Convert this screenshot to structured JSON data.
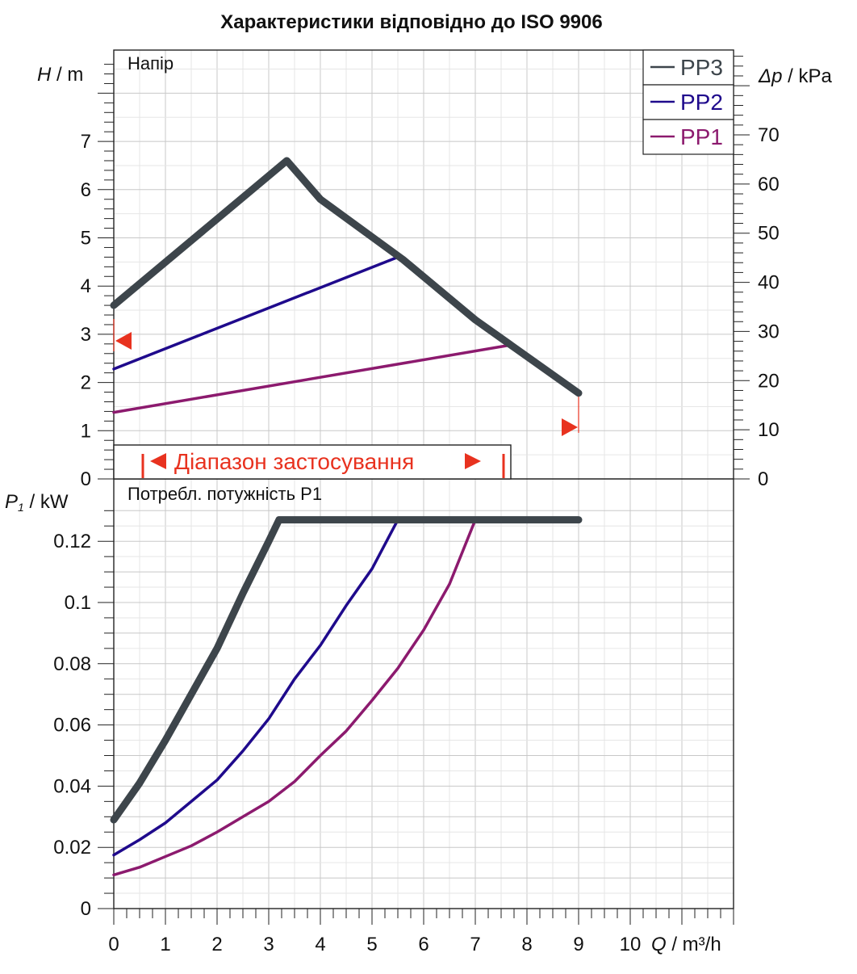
{
  "title": "Характеристики відповідно до ISO 9906",
  "chart_data": [
    {
      "type": "line",
      "panel": "head",
      "panel_label": "Напір",
      "ylabel_var": "H",
      "ylabel_unit": " / m",
      "y2label_var": "Δp",
      "y2label_unit": " / kPa",
      "xlim": [
        0,
        12
      ],
      "ylim": [
        0,
        8.6
      ],
      "y_ticks": [
        "0",
        "1",
        "2",
        "3",
        "4",
        "5",
        "6",
        "7"
      ],
      "y2_ticks": [
        "0",
        "10",
        "20",
        "30",
        "40",
        "50",
        "60",
        "70"
      ],
      "grid": true,
      "legend_position": "top-right",
      "series": [
        {
          "name": "PP3",
          "color": "#3d454b",
          "width": 9,
          "x": [
            0,
            3.35,
            4.0,
            5.6,
            7.0,
            9.0
          ],
          "y": [
            3.6,
            6.6,
            5.8,
            4.55,
            3.3,
            1.78
          ]
        },
        {
          "name": "PP2",
          "color": "#1f0a8c",
          "width": 3.5,
          "x": [
            0,
            5.5
          ],
          "y": [
            2.28,
            4.6
          ]
        },
        {
          "name": "PP1",
          "color": "#8c1a6e",
          "width": 3.5,
          "x": [
            0,
            7.7
          ],
          "y": [
            1.38,
            2.78
          ]
        }
      ],
      "application_range_label": "Діапазон застосування",
      "range_color": "#e8321f"
    },
    {
      "type": "line",
      "panel": "power",
      "panel_label": "Потребл. потужність P1",
      "ylabel_var": "P",
      "ylabel_sub": "1",
      "ylabel_unit": " / kW",
      "xlabel_var": "Q",
      "xlabel_unit": " / m³/h",
      "xlim": [
        0,
        12
      ],
      "ylim": [
        0,
        0.13
      ],
      "x_ticks": [
        "0",
        "1",
        "2",
        "3",
        "4",
        "5",
        "6",
        "7",
        "8",
        "9",
        "10"
      ],
      "y_ticks": [
        "0",
        "0.02",
        "0.04",
        "0.06",
        "0.08",
        "0.1",
        "0.12"
      ],
      "grid": true,
      "series": [
        {
          "name": "PP3",
          "color": "#3d454b",
          "width": 9,
          "x": [
            0,
            0.5,
            1,
            1.5,
            2,
            2.5,
            3,
            3.2,
            5.5,
            9
          ],
          "y": [
            0.029,
            0.041,
            0.055,
            0.07,
            0.085,
            0.103,
            0.12,
            0.127,
            0.127,
            0.127
          ]
        },
        {
          "name": "PP2",
          "color": "#1f0a8c",
          "width": 3.5,
          "x": [
            0,
            0.5,
            1,
            1.5,
            2,
            2.5,
            3,
            3.5,
            4,
            4.5,
            5,
            5.5
          ],
          "y": [
            0.0175,
            0.0225,
            0.028,
            0.035,
            0.042,
            0.0515,
            0.062,
            0.075,
            0.086,
            0.099,
            0.111,
            0.127
          ]
        },
        {
          "name": "PP1",
          "color": "#8c1a6e",
          "width": 3.5,
          "x": [
            0,
            0.5,
            1,
            1.5,
            2,
            2.5,
            3,
            3.5,
            4,
            4.5,
            5,
            5.5,
            6,
            6.5,
            7
          ],
          "y": [
            0.011,
            0.0135,
            0.017,
            0.0205,
            0.025,
            0.03,
            0.035,
            0.0415,
            0.05,
            0.058,
            0.068,
            0.0785,
            0.091,
            0.106,
            0.127
          ]
        }
      ]
    }
  ]
}
